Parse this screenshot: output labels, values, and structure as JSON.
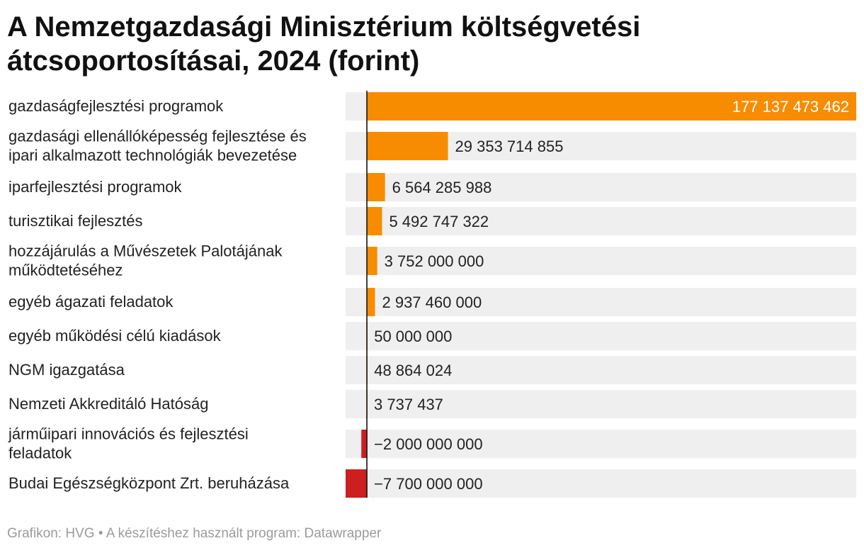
{
  "title": "A Nemzetgazdasági Minisztérium költségvetési átcsoportosításai, 2024 (forint)",
  "footer": "Grafikon: HVG • A készítéshez használt program: Datawrapper",
  "colors": {
    "positive": "#f78c00",
    "negative": "#cd1f1f",
    "track": "#efefef",
    "axis": "#111111",
    "label": "#222222",
    "value_inside": "#ffffff"
  },
  "chart_data": {
    "type": "bar",
    "orientation": "horizontal",
    "title": "A Nemzetgazdasági Minisztérium költségvetési átcsoportosításai, 2024 (forint)",
    "xlabel": "",
    "ylabel": "",
    "xlim": [
      -7700000000,
      177137473462
    ],
    "grid": false,
    "categories": [
      [
        "gazdaságfejlesztési programok"
      ],
      [
        "gazdasági ellenállóképesség fejlesztése és",
        "ipari alkalmazott technológiák bevezetése"
      ],
      [
        "iparfejlesztési programok"
      ],
      [
        "turisztikai fejlesztés"
      ],
      [
        "hozzájárulás a Művészetek Palotájának",
        "működtetéséhez"
      ],
      [
        "egyéb ágazati feladatok"
      ],
      [
        "egyéb működési célú kiadások"
      ],
      [
        "NGM igazgatása"
      ],
      [
        "Nemzeti Akkreditáló Hatóság"
      ],
      [
        "járműipari innovációs és fejlesztési",
        "feladatok"
      ],
      [
        "Budai Egészségközpont Zrt. beruházása"
      ]
    ],
    "values": [
      177137473462,
      29353714855,
      6564285988,
      5492747322,
      3752000000,
      2937460000,
      50000000,
      48864024,
      3737437,
      -2000000000,
      -7700000000
    ],
    "value_labels": [
      "177 137 473 462",
      "29 353 714 855",
      "6 564 285 988",
      "5 492 747 322",
      "3 752 000 000",
      "2 937 460 000",
      "50 000 000",
      "48 864 024",
      "3 737 437",
      "−2 000 000 000",
      "−7 700 000 000"
    ]
  }
}
